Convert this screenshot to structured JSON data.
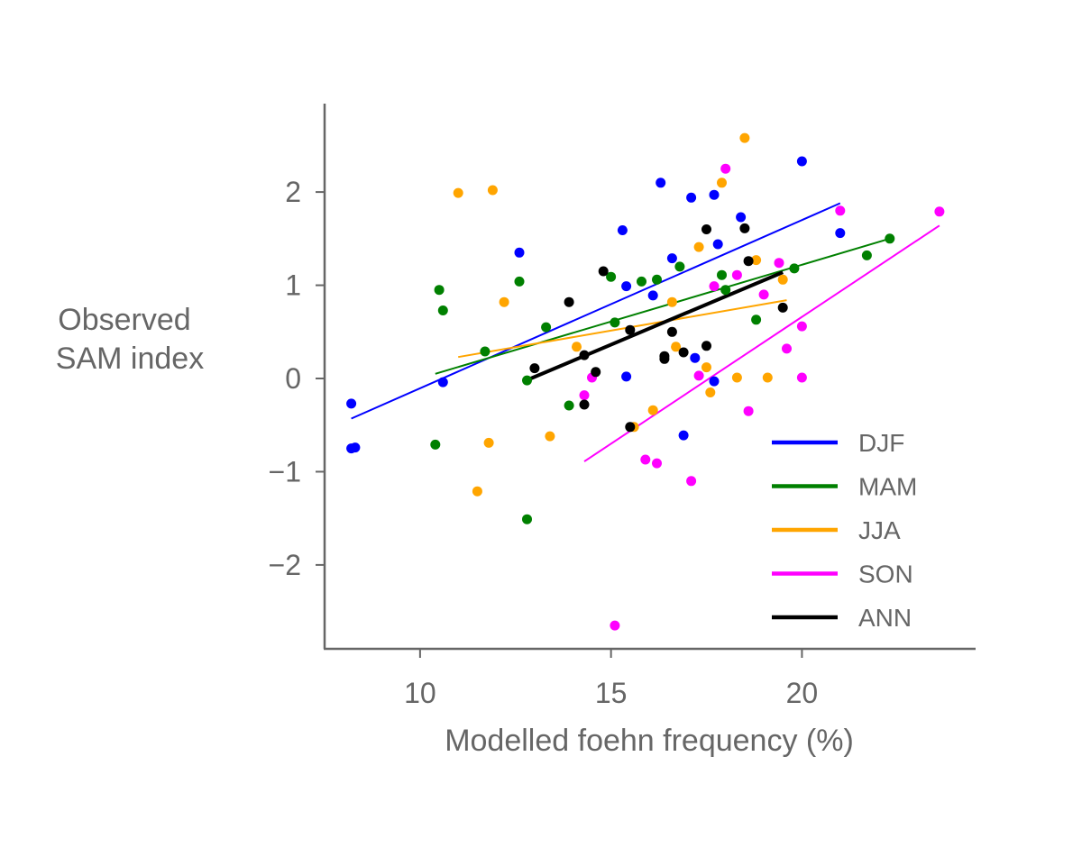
{
  "chart_data": {
    "type": "scatter",
    "xlabel": "Modelled foehn frequency (%)",
    "ylabel": [
      "Observed",
      "SAM index"
    ],
    "xlim": [
      7.5,
      24.5
    ],
    "ylim": [
      -2.9,
      2.9
    ],
    "xticks": [
      10,
      15,
      20
    ],
    "yticks": [
      2,
      1,
      0,
      -1,
      -2
    ],
    "yticks_labels": [
      "2",
      "1",
      "0",
      "−1",
      "−2"
    ],
    "grid": false,
    "legend": "bottom-right",
    "series": [
      {
        "name": "DJF",
        "color": "#0000ff",
        "points": [
          [
            8.2,
            -0.27
          ],
          [
            8.2,
            -0.75
          ],
          [
            8.3,
            -0.74
          ],
          [
            10.6,
            -0.04
          ],
          [
            12.6,
            1.35
          ],
          [
            15.3,
            1.59
          ],
          [
            15.4,
            0.99
          ],
          [
            15.4,
            0.02
          ],
          [
            16.1,
            0.89
          ],
          [
            16.3,
            2.1
          ],
          [
            16.6,
            1.29
          ],
          [
            17.1,
            1.94
          ],
          [
            17.2,
            0.22
          ],
          [
            16.9,
            -0.61
          ],
          [
            17.7,
            1.97
          ],
          [
            17.8,
            1.44
          ],
          [
            17.7,
            -0.03
          ],
          [
            18.4,
            1.73
          ],
          [
            20.0,
            2.33
          ],
          [
            21.0,
            1.56
          ]
        ],
        "fit": [
          [
            8.2,
            -0.43
          ],
          [
            21.0,
            1.88
          ]
        ]
      },
      {
        "name": "MAM",
        "color": "#008000",
        "points": [
          [
            10.5,
            0.95
          ],
          [
            10.6,
            0.73
          ],
          [
            10.4,
            -0.71
          ],
          [
            11.7,
            0.29
          ],
          [
            12.6,
            1.04
          ],
          [
            12.8,
            -0.02
          ],
          [
            12.8,
            -1.51
          ],
          [
            13.3,
            0.55
          ],
          [
            13.9,
            -0.29
          ],
          [
            15.0,
            1.09
          ],
          [
            15.1,
            0.6
          ],
          [
            15.8,
            1.04
          ],
          [
            16.2,
            1.06
          ],
          [
            16.8,
            1.2
          ],
          [
            17.9,
            1.11
          ],
          [
            18.0,
            0.95
          ],
          [
            18.8,
            0.63
          ],
          [
            19.8,
            1.18
          ],
          [
            21.7,
            1.32
          ],
          [
            22.3,
            1.5
          ]
        ],
        "fit": [
          [
            10.4,
            0.05
          ],
          [
            22.3,
            1.5
          ]
        ]
      },
      {
        "name": "JJA",
        "color": "#ffa500",
        "points": [
          [
            11.0,
            1.99
          ],
          [
            11.9,
            2.02
          ],
          [
            12.2,
            0.82
          ],
          [
            11.8,
            -0.69
          ],
          [
            11.5,
            -1.21
          ],
          [
            13.4,
            -0.62
          ],
          [
            14.1,
            0.34
          ],
          [
            15.6,
            -0.52
          ],
          [
            16.1,
            -0.34
          ],
          [
            16.6,
            0.82
          ],
          [
            16.7,
            0.34
          ],
          [
            17.3,
            1.41
          ],
          [
            17.5,
            0.12
          ],
          [
            17.6,
            -0.15
          ],
          [
            17.9,
            2.1
          ],
          [
            18.5,
            2.58
          ],
          [
            18.3,
            0.01
          ],
          [
            18.8,
            1.27
          ],
          [
            19.1,
            0.01
          ],
          [
            19.5,
            1.06
          ]
        ],
        "fit": [
          [
            11.0,
            0.23
          ],
          [
            19.6,
            0.84
          ]
        ]
      },
      {
        "name": "SON",
        "color": "#ff00ff",
        "points": [
          [
            14.3,
            -0.18
          ],
          [
            14.5,
            0.01
          ],
          [
            15.1,
            -2.65
          ],
          [
            15.9,
            -0.87
          ],
          [
            16.2,
            -0.91
          ],
          [
            17.1,
            -1.1
          ],
          [
            17.3,
            0.03
          ],
          [
            17.7,
            0.99
          ],
          [
            18.0,
            2.25
          ],
          [
            18.3,
            1.11
          ],
          [
            18.6,
            -0.35
          ],
          [
            19.0,
            0.9
          ],
          [
            19.4,
            1.24
          ],
          [
            19.6,
            0.32
          ],
          [
            20.0,
            0.01
          ],
          [
            20.0,
            0.56
          ],
          [
            21.0,
            1.8
          ],
          [
            23.6,
            1.79
          ]
        ],
        "fit": [
          [
            14.3,
            -0.89
          ],
          [
            23.6,
            1.64
          ]
        ]
      },
      {
        "name": "ANN",
        "color": "#000000",
        "points": [
          [
            13.0,
            0.11
          ],
          [
            13.9,
            0.82
          ],
          [
            14.3,
            0.25
          ],
          [
            14.3,
            -0.28
          ],
          [
            14.8,
            1.15
          ],
          [
            15.5,
            0.52
          ],
          [
            15.5,
            -0.52
          ],
          [
            14.6,
            0.07
          ],
          [
            16.4,
            0.24
          ],
          [
            16.4,
            0.21
          ],
          [
            16.6,
            0.5
          ],
          [
            16.9,
            0.28
          ],
          [
            17.5,
            1.6
          ],
          [
            17.5,
            0.35
          ],
          [
            18.5,
            1.61
          ],
          [
            18.6,
            1.26
          ],
          [
            19.5,
            0.76
          ]
        ],
        "fit": [
          [
            12.9,
            0.0
          ],
          [
            19.5,
            1.14
          ]
        ]
      }
    ]
  }
}
